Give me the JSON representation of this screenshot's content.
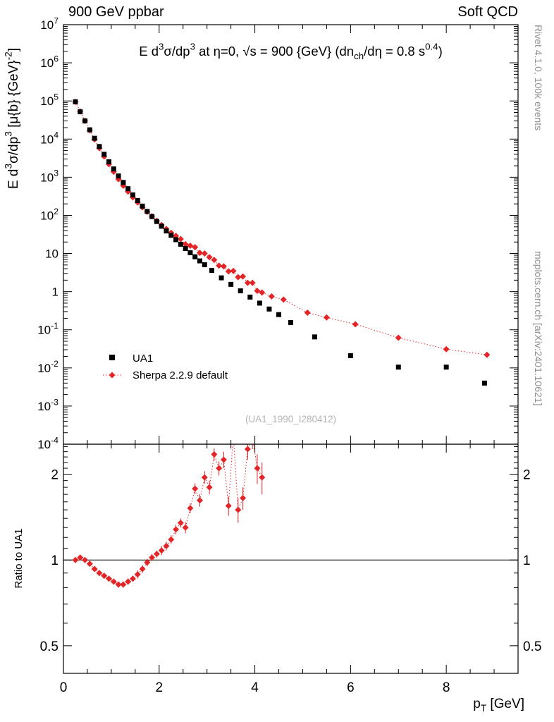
{
  "header": {
    "left": "900 GeV ppbar",
    "right": "Soft QCD"
  },
  "side_notes": {
    "top": "Rivet 4.1.0, 100k events",
    "bottom": "mcplots.cern.ch [arXiv:2401.10621]"
  },
  "plot": {
    "title_segments": [
      [
        "E  d",
        0
      ],
      [
        "3",
        1
      ],
      [
        "σ/dp",
        0
      ],
      [
        "3",
        1
      ],
      [
        " at η=0,  √s = 900 {GeV} (dn",
        0
      ],
      [
        "ch",
        -1
      ],
      [
        "/dη = 0.8 s",
        0
      ],
      [
        "0.4",
        1
      ],
      [
        ")",
        0
      ]
    ],
    "ylabel_segments": [
      [
        "E d",
        0
      ],
      [
        "3",
        1
      ],
      [
        "σ/dp",
        0
      ],
      [
        "3",
        1
      ],
      [
        " [μ{b} {GeV}",
        0
      ],
      [
        "-2",
        1
      ],
      [
        "]",
        0
      ]
    ],
    "xlabel_segments": [
      [
        "p",
        0
      ],
      [
        "T",
        -1
      ],
      [
        " [GeV]",
        0
      ]
    ],
    "ratio_ylabel": "Ratio to UA1",
    "analysis_tag": "(UA1_1990_I280412)"
  },
  "legend": [
    {
      "label": "UA1",
      "marker": "square",
      "color": "#000000"
    },
    {
      "label": "Sherpa 2.2.9 default",
      "marker": "diamond",
      "color": "#e42527",
      "line": "dotted"
    }
  ],
  "colors": {
    "data": "#000000",
    "mc": "#e42527",
    "watermark": "#b4b4b4",
    "side_note": "#8f8f8f",
    "frame": "#000000"
  },
  "chart_data": [
    {
      "type": "scatter",
      "panel": "main",
      "title": "E d3σ/dp3 at η=0, √s = 900 GeV (dn_ch/dη = 0.8 s^0.4)",
      "xlabel": "pT [GeV]",
      "ylabel": "E d3σ/dp3 [μb GeV^-2]",
      "xlim": [
        0,
        9.5
      ],
      "ylim": [
        0.0001,
        10000000.0
      ],
      "ylog": true,
      "x_major_ticks": [
        0,
        2,
        4,
        6,
        8
      ],
      "y_decades": [
        -4,
        7
      ],
      "series": [
        {
          "name": "UA1",
          "marker": "square",
          "color": "#000000",
          "points": [
            [
              0.25,
              95000
            ],
            [
              0.35,
              52000
            ],
            [
              0.45,
              30000
            ],
            [
              0.55,
              17500
            ],
            [
              0.65,
              10500
            ],
            [
              0.75,
              6400
            ],
            [
              0.85,
              4000
            ],
            [
              0.95,
              2550
            ],
            [
              1.05,
              1650
            ],
            [
              1.15,
              1080
            ],
            [
              1.25,
              730
            ],
            [
              1.35,
              500
            ],
            [
              1.45,
              345
            ],
            [
              1.55,
              245
            ],
            [
              1.65,
              175
            ],
            [
              1.75,
              127
            ],
            [
              1.85,
              93
            ],
            [
              1.95,
              69
            ],
            [
              2.05,
              52
            ],
            [
              2.15,
              39
            ],
            [
              2.25,
              30
            ],
            [
              2.35,
              23
            ],
            [
              2.45,
              17.5
            ],
            [
              2.55,
              13.5
            ],
            [
              2.65,
              10.5
            ],
            [
              2.75,
              8.2
            ],
            [
              2.85,
              6.4
            ],
            [
              2.95,
              5.1
            ],
            [
              3.1,
              3.6
            ],
            [
              3.3,
              2.3
            ],
            [
              3.5,
              1.55
            ],
            [
              3.7,
              1.05
            ],
            [
              3.9,
              0.72
            ],
            [
              4.1,
              0.5
            ],
            [
              4.3,
              0.35
            ],
            [
              4.5,
              0.25
            ],
            [
              4.75,
              0.155
            ],
            [
              5.25,
              0.065
            ],
            [
              6.0,
              0.021
            ],
            [
              7.0,
              0.0105
            ],
            [
              8.0,
              0.0105
            ],
            [
              8.8,
              0.004
            ]
          ]
        },
        {
          "name": "Sherpa 2.2.9 default",
          "marker": "diamond",
          "color": "#e42527",
          "line": "dotted",
          "points": [
            [
              0.25,
              95000
            ],
            [
              0.35,
              53000
            ],
            [
              0.45,
              30000
            ],
            [
              0.55,
              17000
            ],
            [
              0.65,
              9800
            ],
            [
              0.75,
              5800
            ],
            [
              0.85,
              3500
            ],
            [
              0.95,
              2200
            ],
            [
              1.05,
              1390
            ],
            [
              1.15,
              890
            ],
            [
              1.25,
              600
            ],
            [
              1.35,
              420
            ],
            [
              1.45,
              297
            ],
            [
              1.55,
              218
            ],
            [
              1.65,
              163
            ],
            [
              1.75,
              124
            ],
            [
              1.85,
              95
            ],
            [
              1.95,
              72
            ],
            [
              2.05,
              56
            ],
            [
              2.15,
              44
            ],
            [
              2.25,
              35
            ],
            [
              2.35,
              29
            ],
            [
              2.45,
              24
            ],
            [
              2.55,
              17.5
            ],
            [
              2.65,
              16
            ],
            [
              2.75,
              14.6
            ],
            [
              2.85,
              10.4
            ],
            [
              2.95,
              10
            ],
            [
              3.05,
              8.0
            ],
            [
              3.15,
              6.8
            ],
            [
              3.25,
              4.8
            ],
            [
              3.35,
              4.6
            ],
            [
              3.45,
              3.4
            ],
            [
              3.55,
              3.5
            ],
            [
              3.65,
              2.4
            ],
            [
              3.75,
              2.5
            ],
            [
              3.85,
              1.7
            ],
            [
              3.95,
              1.7
            ],
            [
              4.05,
              1.05
            ],
            [
              4.15,
              0.95
            ],
            [
              4.35,
              0.75
            ],
            [
              4.6,
              0.62
            ],
            [
              5.1,
              0.28
            ],
            [
              5.5,
              0.21
            ],
            [
              6.1,
              0.14
            ],
            [
              7.0,
              0.062
            ],
            [
              8.0,
              0.031
            ],
            [
              8.85,
              0.022
            ]
          ]
        }
      ]
    },
    {
      "type": "scatter",
      "panel": "ratio",
      "ylabel": "Ratio to UA1",
      "xlim": [
        0,
        9.5
      ],
      "ylim": [
        0.4,
        2.55
      ],
      "ylog": true,
      "ref_line": 1,
      "x_major_ticks": [
        0,
        2,
        4,
        6,
        8
      ],
      "y_major_ticks": [
        0.5,
        1,
        2
      ],
      "series": [
        {
          "name": "Sherpa 2.2.9 default / UA1",
          "marker": "diamond",
          "color": "#e42527",
          "line": "dotted",
          "points": [
            [
              0.25,
              1.0,
              0.02
            ],
            [
              0.35,
              1.02,
              0.02
            ],
            [
              0.45,
              1.0,
              0.02
            ],
            [
              0.55,
              0.97,
              0.02
            ],
            [
              0.65,
              0.93,
              0.02
            ],
            [
              0.75,
              0.9,
              0.02
            ],
            [
              0.85,
              0.88,
              0.02
            ],
            [
              0.95,
              0.86,
              0.02
            ],
            [
              1.05,
              0.84,
              0.02
            ],
            [
              1.15,
              0.82,
              0.02
            ],
            [
              1.25,
              0.82,
              0.02
            ],
            [
              1.35,
              0.84,
              0.02
            ],
            [
              1.45,
              0.86,
              0.02
            ],
            [
              1.55,
              0.89,
              0.03
            ],
            [
              1.65,
              0.93,
              0.03
            ],
            [
              1.75,
              0.98,
              0.03
            ],
            [
              1.85,
              1.02,
              0.03
            ],
            [
              1.95,
              1.05,
              0.03
            ],
            [
              2.05,
              1.08,
              0.04
            ],
            [
              2.15,
              1.12,
              0.04
            ],
            [
              2.25,
              1.18,
              0.04
            ],
            [
              2.35,
              1.28,
              0.05
            ],
            [
              2.45,
              1.35,
              0.05
            ],
            [
              2.55,
              1.3,
              0.06
            ],
            [
              2.65,
              1.52,
              0.06
            ],
            [
              2.75,
              1.78,
              0.08
            ],
            [
              2.85,
              1.62,
              0.08
            ],
            [
              2.95,
              1.95,
              0.1
            ],
            [
              3.05,
              1.8,
              0.1
            ],
            [
              3.15,
              2.35,
              0.12
            ],
            [
              3.25,
              2.1,
              0.12
            ],
            [
              3.35,
              2.25,
              0.15
            ],
            [
              3.45,
              1.55,
              0.12
            ],
            [
              3.55,
              2.75,
              0.2
            ],
            [
              3.65,
              1.5,
              0.15
            ],
            [
              3.75,
              1.65,
              0.15
            ],
            [
              3.85,
              2.45,
              0.2
            ],
            [
              3.95,
              2.7,
              0.25
            ],
            [
              4.05,
              2.1,
              0.25
            ],
            [
              4.15,
              1.95,
              0.25
            ]
          ]
        }
      ]
    }
  ]
}
